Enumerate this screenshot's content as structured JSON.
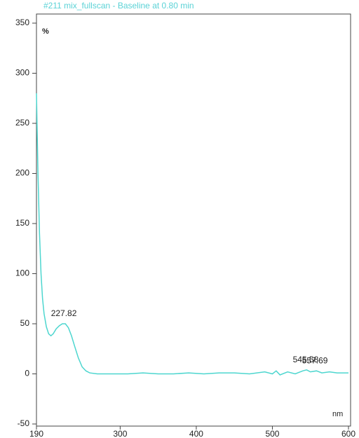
{
  "chart_data": {
    "type": "line",
    "title": "#211 mix_fullscan - Baseline at 0.80 min",
    "y_label": "%",
    "x_label": "nm",
    "xlim": [
      190,
      600
    ],
    "xticks": [
      190,
      300,
      400,
      500,
      600
    ],
    "ylim": [
      -50,
      350
    ],
    "yticks": [
      -50,
      0,
      50,
      100,
      150,
      200,
      250,
      300,
      350
    ],
    "series": [
      {
        "name": "#211 mix_fullscan",
        "color": "#4dd6cf",
        "x": [
          190,
          192,
          194,
          196,
          198,
          200,
          203,
          206,
          209,
          212,
          216,
          220,
          224,
          228,
          232,
          236,
          240,
          245,
          250,
          255,
          260,
          270,
          290,
          310,
          330,
          350,
          370,
          390,
          410,
          430,
          450,
          470,
          490,
          500,
          505,
          510,
          520,
          530,
          540,
          545,
          550,
          558,
          565,
          575,
          585,
          600
        ],
        "values": [
          280,
          200,
          140,
          100,
          75,
          60,
          47,
          40,
          38,
          40,
          45,
          48,
          50,
          50,
          46,
          38,
          28,
          16,
          7,
          3,
          1,
          0,
          0,
          0,
          1,
          0,
          0,
          1,
          0,
          1,
          1,
          0,
          2,
          0,
          3,
          -1,
          2,
          0,
          3,
          4,
          2,
          3,
          1,
          2,
          1,
          1
        ]
      }
    ],
    "annotations": [
      {
        "x": 227.82,
        "y": 50
      },
      {
        "x": 545.58,
        "y": 4
      },
      {
        "x": 557.69,
        "y": 3
      }
    ]
  }
}
